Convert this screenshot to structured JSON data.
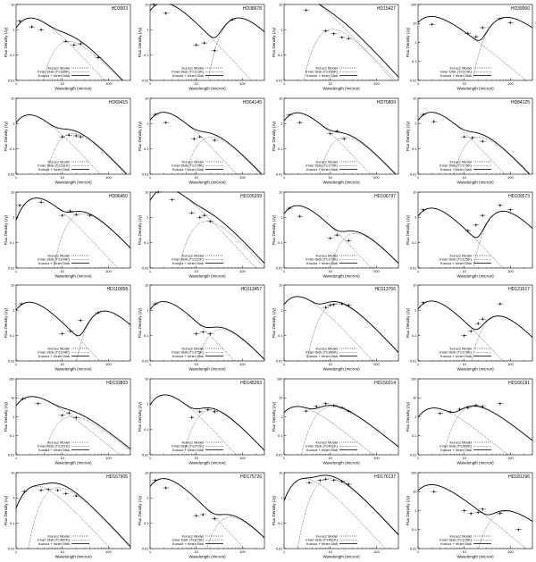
{
  "figure": {
    "xlabel": "Wavelength (micron)",
    "ylabel": "Flux Density (Jy)",
    "legend": [
      "Kurucz Model",
      "Inner Disk",
      "Kurucz + Inner Disk"
    ]
  },
  "chart_data": [
    {
      "type": "line",
      "title": "HD3003",
      "inner_disk_label": "Inner Disk (T≤185K)",
      "xscale": "log",
      "yscale": "log",
      "xlim": [
        1,
        300
      ],
      "ylim": [
        0.01,
        10
      ],
      "star_peak": [
        1.5,
        2.5
      ],
      "disk_peak": [
        10,
        0.3
      ],
      "points": [
        {
          "x": 1.2,
          "y": 2.2
        },
        {
          "x": 2.2,
          "y": 1.3
        },
        {
          "x": 3.5,
          "y": 1.0
        },
        {
          "x": 12,
          "y": 0.35
        },
        {
          "x": 18,
          "y": 0.25
        },
        {
          "x": 25,
          "y": 0.28
        },
        {
          "x": 60,
          "y": 0.08
        }
      ]
    },
    {
      "type": "line",
      "title": "HD38678",
      "inner_disk_label": "Inner Disk (T≤123K)",
      "xscale": "log",
      "yscale": "log",
      "xlim": [
        1,
        300
      ],
      "ylim": [
        0.01,
        10
      ],
      "star_peak": [
        1.4,
        10
      ],
      "disk_peak": [
        60,
        2.5
      ],
      "points": [
        {
          "x": 1.2,
          "y": 10
        },
        {
          "x": 2.2,
          "y": 4.5
        },
        {
          "x": 10,
          "y": 0.25
        },
        {
          "x": 15,
          "y": 0.3
        },
        {
          "x": 25,
          "y": 0.15
        },
        {
          "x": 60,
          "y": 2.5
        }
      ]
    },
    {
      "type": "line",
      "title": "HD15427",
      "inner_disk_label": "Inner Disk (T≤255K)",
      "xscale": "log",
      "yscale": "log",
      "xlim": [
        1,
        300
      ],
      "ylim": [
        0.01,
        10
      ],
      "star_peak": [
        1.4,
        22
      ],
      "disk_peak": [
        8,
        0.9
      ],
      "points": [
        {
          "x": 1.2,
          "y": 20
        },
        {
          "x": 3,
          "y": 6
        },
        {
          "x": 8,
          "y": 0.9
        },
        {
          "x": 12,
          "y": 0.7
        },
        {
          "x": 18,
          "y": 0.5
        },
        {
          "x": 25,
          "y": 0.45
        }
      ]
    },
    {
      "type": "line",
      "title": "HD39060",
      "inner_disk_label": "Inner Disk (T≤110K)",
      "xscale": "log",
      "yscale": "log",
      "xlim": [
        1,
        300
      ],
      "ylim": [
        0.01,
        100
      ],
      "star_peak": [
        1.4,
        20
      ],
      "disk_peak": [
        60,
        18
      ],
      "points": [
        {
          "x": 2,
          "y": 9
        },
        {
          "x": 12,
          "y": 3
        },
        {
          "x": 18,
          "y": 2
        },
        {
          "x": 25,
          "y": 6
        },
        {
          "x": 60,
          "y": 18
        },
        {
          "x": 100,
          "y": 11
        }
      ]
    },
    {
      "type": "line",
      "title": "HD69415",
      "inner_disk_label": "Inner Disk (T≤231K)",
      "xscale": "log",
      "yscale": "log",
      "xlim": [
        1,
        300
      ],
      "ylim": [
        0.01,
        10
      ],
      "star_peak": [
        1.4,
        1.9
      ],
      "disk_peak": [
        12,
        0.35
      ],
      "points": [
        {
          "x": 10,
          "y": 0.3
        },
        {
          "x": 14,
          "y": 0.35
        },
        {
          "x": 20,
          "y": 0.33
        },
        {
          "x": 25,
          "y": 0.3
        }
      ]
    },
    {
      "type": "line",
      "title": "HD64145",
      "inner_disk_label": "Inner Disk (T≤178K)",
      "xscale": "log",
      "yscale": "log",
      "xlim": [
        1,
        300
      ],
      "ylim": [
        0.01,
        10
      ],
      "star_peak": [
        1.4,
        2.4
      ],
      "disk_peak": [
        15,
        0.25
      ],
      "points": [
        {
          "x": 1.3,
          "y": 2.3
        },
        {
          "x": 2.2,
          "y": 1.1
        },
        {
          "x": 9,
          "y": 0.25
        },
        {
          "x": 12,
          "y": 0.3
        },
        {
          "x": 25,
          "y": 0.22
        }
      ]
    },
    {
      "type": "line",
      "title": "HD75809",
      "inner_disk_label": "Inner Disk (T≤170K)",
      "xscale": "log",
      "yscale": "log",
      "xlim": [
        1,
        300
      ],
      "ylim": [
        0.01,
        10
      ],
      "star_peak": [
        1.4,
        2.3
      ],
      "disk_peak": [
        15,
        0.25
      ],
      "points": [
        {
          "x": 1.3,
          "y": 2.2
        },
        {
          "x": 2.2,
          "y": 1.1
        },
        {
          "x": 10,
          "y": 0.4
        },
        {
          "x": 14,
          "y": 0.5
        },
        {
          "x": 20,
          "y": 0.25
        }
      ]
    },
    {
      "type": "line",
      "title": "HD84125",
      "inner_disk_label": "Inner Disk (T≤175K)",
      "xscale": "log",
      "yscale": "log",
      "xlim": [
        1,
        300
      ],
      "ylim": [
        0.01,
        10
      ],
      "star_peak": [
        1.4,
        2.4
      ],
      "disk_peak": [
        15,
        0.25
      ],
      "points": [
        {
          "x": 1.3,
          "y": 2.3
        },
        {
          "x": 2.2,
          "y": 1.2
        },
        {
          "x": 10,
          "y": 0.3
        },
        {
          "x": 15,
          "y": 0.28
        },
        {
          "x": 25,
          "y": 0.2
        }
      ]
    },
    {
      "type": "line",
      "title": "HD96450",
      "inner_disk_label": "Inner Disk (T≤190K)",
      "xscale": "log",
      "yscale": "log",
      "xlim": [
        1,
        300
      ],
      "ylim": [
        0.01,
        10
      ],
      "star_peak": [
        2,
        5
      ],
      "disk_peak": [
        20,
        1.2
      ],
      "points": [
        {
          "x": 1.2,
          "y": 3
        },
        {
          "x": 3.5,
          "y": 4
        },
        {
          "x": 10,
          "y": 1.2
        },
        {
          "x": 15,
          "y": 1.8
        },
        {
          "x": 20,
          "y": 1.3
        },
        {
          "x": 40,
          "y": 1.2
        }
      ]
    },
    {
      "type": "line",
      "title": "HD105209",
      "inner_disk_label": "Inner Disk (T≤222K)",
      "xscale": "log",
      "yscale": "log",
      "xlim": [
        1,
        300
      ],
      "ylim": [
        0.01,
        10
      ],
      "star_peak": [
        1.6,
        12
      ],
      "disk_peak": [
        12,
        0.6
      ],
      "points": [
        {
          "x": 1.5,
          "y": 10
        },
        {
          "x": 3,
          "y": 5
        },
        {
          "x": 8,
          "y": 1.5
        },
        {
          "x": 12,
          "y": 1
        },
        {
          "x": 15,
          "y": 1.2
        },
        {
          "x": 20,
          "y": 0.7
        }
      ]
    },
    {
      "type": "line",
      "title": "HD106797",
      "inner_disk_label": "Inner Disk (T≤173K)",
      "xscale": "log",
      "yscale": "log",
      "xlim": [
        1,
        300
      ],
      "ylim": [
        0.01,
        10
      ],
      "star_peak": [
        1.4,
        2.5
      ],
      "disk_peak": [
        25,
        0.2
      ],
      "points": [
        {
          "x": 1.3,
          "y": 2.3
        },
        {
          "x": 2.2,
          "y": 1.1
        },
        {
          "x": 10,
          "y": 0.15
        },
        {
          "x": 14,
          "y": 0.2
        },
        {
          "x": 25,
          "y": 0.12
        }
      ]
    },
    {
      "type": "line",
      "title": "HD109573",
      "inner_disk_label": "Inner Disk (T≤125K)",
      "xscale": "log",
      "yscale": "log",
      "xlim": [
        1,
        300
      ],
      "ylim": [
        0.01,
        10
      ],
      "star_peak": [
        1.4,
        2
      ],
      "disk_peak": [
        50,
        1.5
      ],
      "points": [
        {
          "x": 1.3,
          "y": 2
        },
        {
          "x": 12,
          "y": 0.3
        },
        {
          "x": 18,
          "y": 0.5
        },
        {
          "x": 25,
          "y": 1.2
        },
        {
          "x": 60,
          "y": 3
        },
        {
          "x": 100,
          "y": 2
        }
      ]
    },
    {
      "type": "line",
      "title": "HD110058",
      "inner_disk_label": "Inner Disk (T≤104K)",
      "xscale": "log",
      "yscale": "log",
      "xlim": [
        1,
        300
      ],
      "ylim": [
        0.01,
        10
      ],
      "star_peak": [
        1.4,
        1.8
      ],
      "disk_peak": [
        60,
        0.8
      ],
      "points": [
        {
          "x": 1.3,
          "y": 1.8
        },
        {
          "x": 10,
          "y": 0.12
        },
        {
          "x": 15,
          "y": 0.15
        },
        {
          "x": 25,
          "y": 0.4
        },
        {
          "x": 60,
          "y": 0.8
        }
      ]
    },
    {
      "type": "line",
      "title": "HD113457",
      "inner_disk_label": "Inner Disk (T≤175K)",
      "xscale": "log",
      "yscale": "log",
      "xlim": [
        1,
        300
      ],
      "ylim": [
        0.01,
        10
      ],
      "star_peak": [
        1.4,
        1.9
      ],
      "disk_peak": [
        25,
        0.15
      ],
      "points": [
        {
          "x": 1.3,
          "y": 1.8
        },
        {
          "x": 10,
          "y": 0.12
        },
        {
          "x": 14,
          "y": 0.14
        },
        {
          "x": 20,
          "y": 0.12
        }
      ]
    },
    {
      "type": "line",
      "title": "HD113766",
      "inner_disk_label": "Inner Disk (T≤360K)",
      "xscale": "log",
      "yscale": "log",
      "xlim": [
        1,
        300
      ],
      "ylim": [
        0.01,
        10
      ],
      "star_peak": [
        1.4,
        3
      ],
      "disk_peak": [
        10,
        1.6
      ],
      "points": [
        {
          "x": 8,
          "y": 1.3
        },
        {
          "x": 10,
          "y": 1.6
        },
        {
          "x": 12,
          "y": 1.7
        },
        {
          "x": 18,
          "y": 1.8
        },
        {
          "x": 25,
          "y": 1.6
        }
      ]
    },
    {
      "type": "line",
      "title": "HD121617",
      "inner_disk_label": "Inner Disk (T≤178K)",
      "xscale": "log",
      "yscale": "log",
      "xlim": [
        1,
        300
      ],
      "ylim": [
        0.01,
        10
      ],
      "star_peak": [
        1.4,
        2
      ],
      "disk_peak": [
        40,
        0.5
      ],
      "points": [
        {
          "x": 1.3,
          "y": 2
        },
        {
          "x": 10,
          "y": 0.1
        },
        {
          "x": 14,
          "y": 0.15
        },
        {
          "x": 20,
          "y": 0.3
        },
        {
          "x": 25,
          "y": 0.45
        },
        {
          "x": 60,
          "y": 1.8
        }
      ]
    },
    {
      "type": "line",
      "title": "HD133803",
      "inner_disk_label": "Inner Disk (T≤221K)",
      "xscale": "log",
      "yscale": "log",
      "xlim": [
        1,
        300
      ],
      "ylim": [
        0.01,
        100
      ],
      "star_peak": [
        1.6,
        10
      ],
      "disk_peak": [
        12,
        0.9
      ],
      "points": [
        {
          "x": 1.4,
          "y": 9
        },
        {
          "x": 3,
          "y": 5
        },
        {
          "x": 10,
          "y": 1.2
        },
        {
          "x": 14,
          "y": 1.6
        },
        {
          "x": 20,
          "y": 0.9
        }
      ]
    },
    {
      "type": "line",
      "title": "HD145263",
      "inner_disk_label": "Inner Disk (T≤272K)",
      "xscale": "log",
      "yscale": "log",
      "xlim": [
        1,
        300
      ],
      "ylim": [
        0.01,
        10
      ],
      "star_peak": [
        1.5,
        2
      ],
      "disk_peak": [
        15,
        0.5
      ],
      "points": [
        {
          "x": 8,
          "y": 0.3
        },
        {
          "x": 12,
          "y": 0.5
        },
        {
          "x": 18,
          "y": 0.6
        },
        {
          "x": 25,
          "y": 0.5
        }
      ]
    },
    {
      "type": "line",
      "title": "HD150314",
      "inner_disk_label": "Inner Disk (T≤401K)",
      "xscale": "log",
      "yscale": "log",
      "xlim": [
        1,
        300
      ],
      "ylim": [
        0.01,
        100
      ],
      "star_peak": [
        1.4,
        3
      ],
      "disk_peak": [
        8,
        3
      ],
      "points": [
        {
          "x": 3,
          "y": 2
        },
        {
          "x": 5,
          "y": 3.5
        },
        {
          "x": 8,
          "y": 5
        },
        {
          "x": 12,
          "y": 4
        },
        {
          "x": 18,
          "y": 3
        },
        {
          "x": 25,
          "y": 2
        }
      ]
    },
    {
      "type": "line",
      "title": "HD166191",
      "inner_disk_label": "Inner Disk (T≤350K)",
      "xscale": "log",
      "yscale": "log",
      "xlim": [
        1,
        300
      ],
      "ylim": [
        0.01,
        100
      ],
      "star_peak": [
        1.6,
        2.5
      ],
      "disk_peak": [
        12,
        3
      ],
      "points": [
        {
          "x": 3,
          "y": 1.5
        },
        {
          "x": 5,
          "y": 1.8
        },
        {
          "x": 8,
          "y": 2.5
        },
        {
          "x": 12,
          "y": 3
        },
        {
          "x": 18,
          "y": 4
        },
        {
          "x": 25,
          "y": 3.5
        },
        {
          "x": 60,
          "y": 5
        }
      ]
    },
    {
      "type": "line",
      "title": "HD167905",
      "inner_disk_label": "Inner Disk (T≤487K)",
      "xscale": "log",
      "yscale": "log",
      "xlim": [
        1,
        300
      ],
      "ylim": [
        0.01,
        10
      ],
      "star_peak": [
        2,
        2.5
      ],
      "disk_peak": [
        6,
        2.2
      ],
      "points": [
        {
          "x": 1.5,
          "y": 1.8
        },
        {
          "x": 3.5,
          "y": 2
        },
        {
          "x": 5,
          "y": 2.2
        },
        {
          "x": 8,
          "y": 2
        },
        {
          "x": 12,
          "y": 1.5
        },
        {
          "x": 20,
          "y": 1.2
        }
      ]
    },
    {
      "type": "line",
      "title": "HD175726",
      "inner_disk_label": "Inner Disk (T≤115K)",
      "xscale": "log",
      "yscale": "log",
      "xlim": [
        1,
        300
      ],
      "ylim": [
        0.01,
        10
      ],
      "star_peak": [
        1.4,
        5
      ],
      "disk_peak": [
        40,
        0.15
      ],
      "points": [
        {
          "x": 1.3,
          "y": 5
        },
        {
          "x": 2.2,
          "y": 2.5
        },
        {
          "x": 10,
          "y": 0.2
        },
        {
          "x": 14,
          "y": 0.22
        },
        {
          "x": 25,
          "y": 0.15
        }
      ]
    },
    {
      "type": "line",
      "title": "HD176137",
      "inner_disk_label": "Inner Disk (T≤461K)",
      "xscale": "log",
      "yscale": "log",
      "xlim": [
        1,
        300
      ],
      "ylim": [
        0.01,
        10
      ],
      "star_peak": [
        2,
        5
      ],
      "disk_peak": [
        7,
        5
      ],
      "points": [
        {
          "x": 3.5,
          "y": 4
        },
        {
          "x": 6,
          "y": 5
        },
        {
          "x": 8,
          "y": 5.5
        },
        {
          "x": 12,
          "y": 5
        },
        {
          "x": 18,
          "y": 4.5
        },
        {
          "x": 25,
          "y": 3.5
        }
      ]
    },
    {
      "type": "line",
      "title": "HD181296",
      "inner_disk_label": "Inner Disk (T≤126K)",
      "xscale": "log",
      "yscale": "log",
      "xlim": [
        1,
        300
      ],
      "ylim": [
        0.01,
        100
      ],
      "star_peak": [
        1.4,
        20
      ],
      "disk_peak": [
        60,
        0.8
      ],
      "points": [
        {
          "x": 2.2,
          "y": 10
        },
        {
          "x": 10,
          "y": 1
        },
        {
          "x": 14,
          "y": 0.7
        },
        {
          "x": 20,
          "y": 0.8
        },
        {
          "x": 25,
          "y": 1.2
        },
        {
          "x": 60,
          "y": 0.7
        },
        {
          "x": 150,
          "y": 0.1
        }
      ]
    }
  ]
}
